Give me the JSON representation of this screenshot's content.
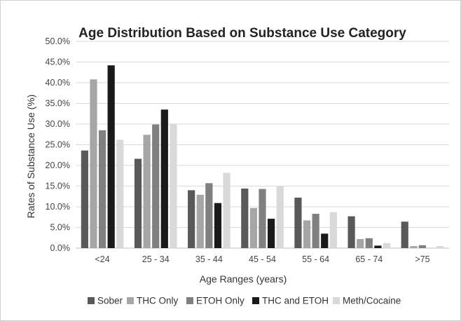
{
  "chart_data": {
    "type": "bar",
    "title": "Age Distribution Based on Substance Use Category",
    "xlabel": "Age Ranges (years)",
    "ylabel": "Rates of Substance Use (%)",
    "ylim": [
      0,
      50
    ],
    "yticks": [
      "0.0%",
      "5.0%",
      "10.0%",
      "15.0%",
      "20.0%",
      "25.0%",
      "30.0%",
      "35.0%",
      "40.0%",
      "45.0%",
      "50.0%"
    ],
    "grid": true,
    "legend_position": "bottom",
    "categories": [
      "<24",
      "25 - 34",
      "35 - 44",
      "45 - 54",
      "55 - 64",
      "65 - 74",
      ">75"
    ],
    "series": [
      {
        "name": "Sober",
        "color": "#595959",
        "values": [
          23.6,
          21.6,
          14.0,
          14.4,
          12.2,
          7.7,
          6.4
        ]
      },
      {
        "name": "THC Only",
        "color": "#a6a6a6",
        "values": [
          40.8,
          27.4,
          12.9,
          9.7,
          6.7,
          2.2,
          0.5
        ]
      },
      {
        "name": "ETOH Only",
        "color": "#808080",
        "values": [
          28.5,
          29.9,
          15.7,
          14.3,
          8.3,
          2.4,
          0.7
        ]
      },
      {
        "name": "THC and ETOH",
        "color": "#1a1a1a",
        "values": [
          44.2,
          33.5,
          10.9,
          7.1,
          3.5,
          0.6,
          0.0
        ]
      },
      {
        "name": "Meth/Cocaine",
        "color": "#d9d9d9",
        "values": [
          26.2,
          30.1,
          18.2,
          15.0,
          8.7,
          1.2,
          0.5
        ]
      }
    ]
  }
}
